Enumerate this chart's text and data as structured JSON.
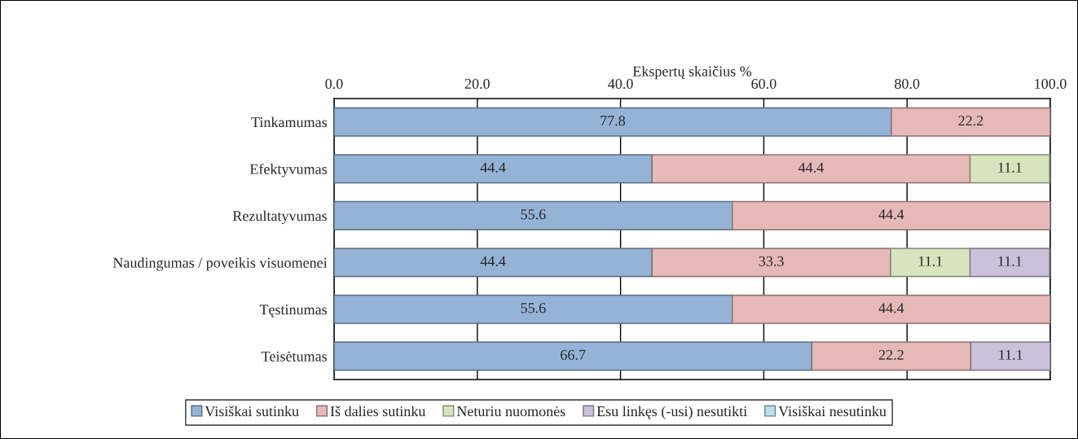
{
  "chart_data": {
    "type": "bar",
    "orientation": "horizontal",
    "stacked": true,
    "xlabel": "Ekspertų skaičius %",
    "categories": [
      "Tinkamumas",
      "Efektyvumas",
      "Rezultatyvumas",
      "Naudingumas / poveikis visuomenei",
      "Tęstinumas",
      "Teisėtumas"
    ],
    "series": [
      {
        "name": "Visiškai sutinku",
        "color": "#95b3d7",
        "values": [
          77.8,
          44.4,
          55.6,
          44.4,
          55.6,
          66.7
        ]
      },
      {
        "name": "Iš dalies sutinku",
        "color": "#e6b9b8",
        "values": [
          22.2,
          44.4,
          44.4,
          33.3,
          44.4,
          22.2
        ]
      },
      {
        "name": "Neturiu nuomonės",
        "color": "#d7e4bd",
        "values": [
          null,
          11.1,
          null,
          11.1,
          null,
          null
        ]
      },
      {
        "name": "Esu linkęs (-usi) nesutikti",
        "color": "#ccc1da",
        "values": [
          null,
          null,
          null,
          11.1,
          null,
          11.1
        ]
      },
      {
        "name": "Visiškai nesutinku",
        "color": "#b7dee8",
        "values": [
          null,
          null,
          null,
          null,
          null,
          null
        ]
      }
    ],
    "xlim": [
      0,
      100
    ],
    "xticks": [
      {
        "value": 0,
        "label": "0.0"
      },
      {
        "value": 20,
        "label": "20.0"
      },
      {
        "value": 40,
        "label": "40.0"
      },
      {
        "value": 60,
        "label": "60.0"
      },
      {
        "value": 80,
        "label": "80.0"
      },
      {
        "value": 100,
        "label": "100.0"
      }
    ],
    "grid": "x",
    "legend": "bottom",
    "data_labels": true
  }
}
